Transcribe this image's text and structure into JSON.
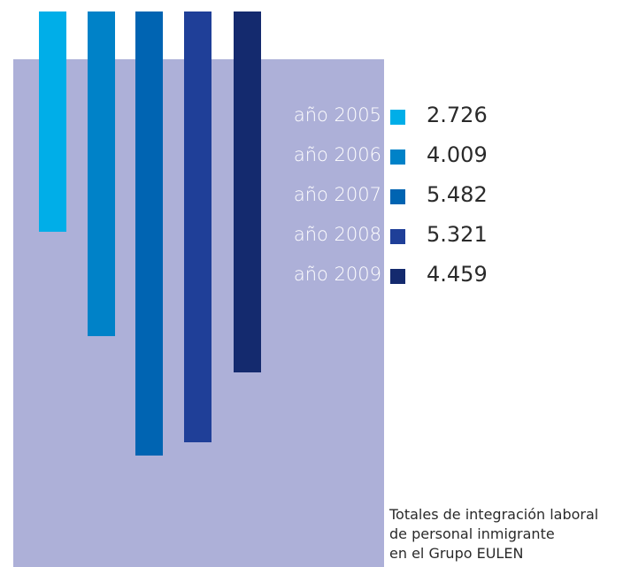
{
  "chart_data": {
    "type": "bar",
    "categories": [
      "año 2005",
      "año 2006",
      "año 2007",
      "año 2008",
      "año 2009"
    ],
    "values": [
      2726,
      4009,
      5482,
      5321,
      4459
    ],
    "value_labels": [
      "2.726",
      "4.009",
      "5.482",
      "5.321",
      "4.459"
    ],
    "colors": [
      "#00aee8",
      "#0082c8",
      "#0064b2",
      "#1f3f98",
      "#142a6e"
    ],
    "orientation": "vertical-hanging",
    "ylim": [
      0,
      6600
    ],
    "grid": false,
    "legend": "right",
    "caption_lines": [
      "Totales de integración laboral",
      "de personal inmigrante",
      "en el Grupo EULEN"
    ]
  },
  "colors": {
    "panel": "#adb0d8",
    "year_text": "#ffffff",
    "value_text": "#2a2a2a"
  }
}
